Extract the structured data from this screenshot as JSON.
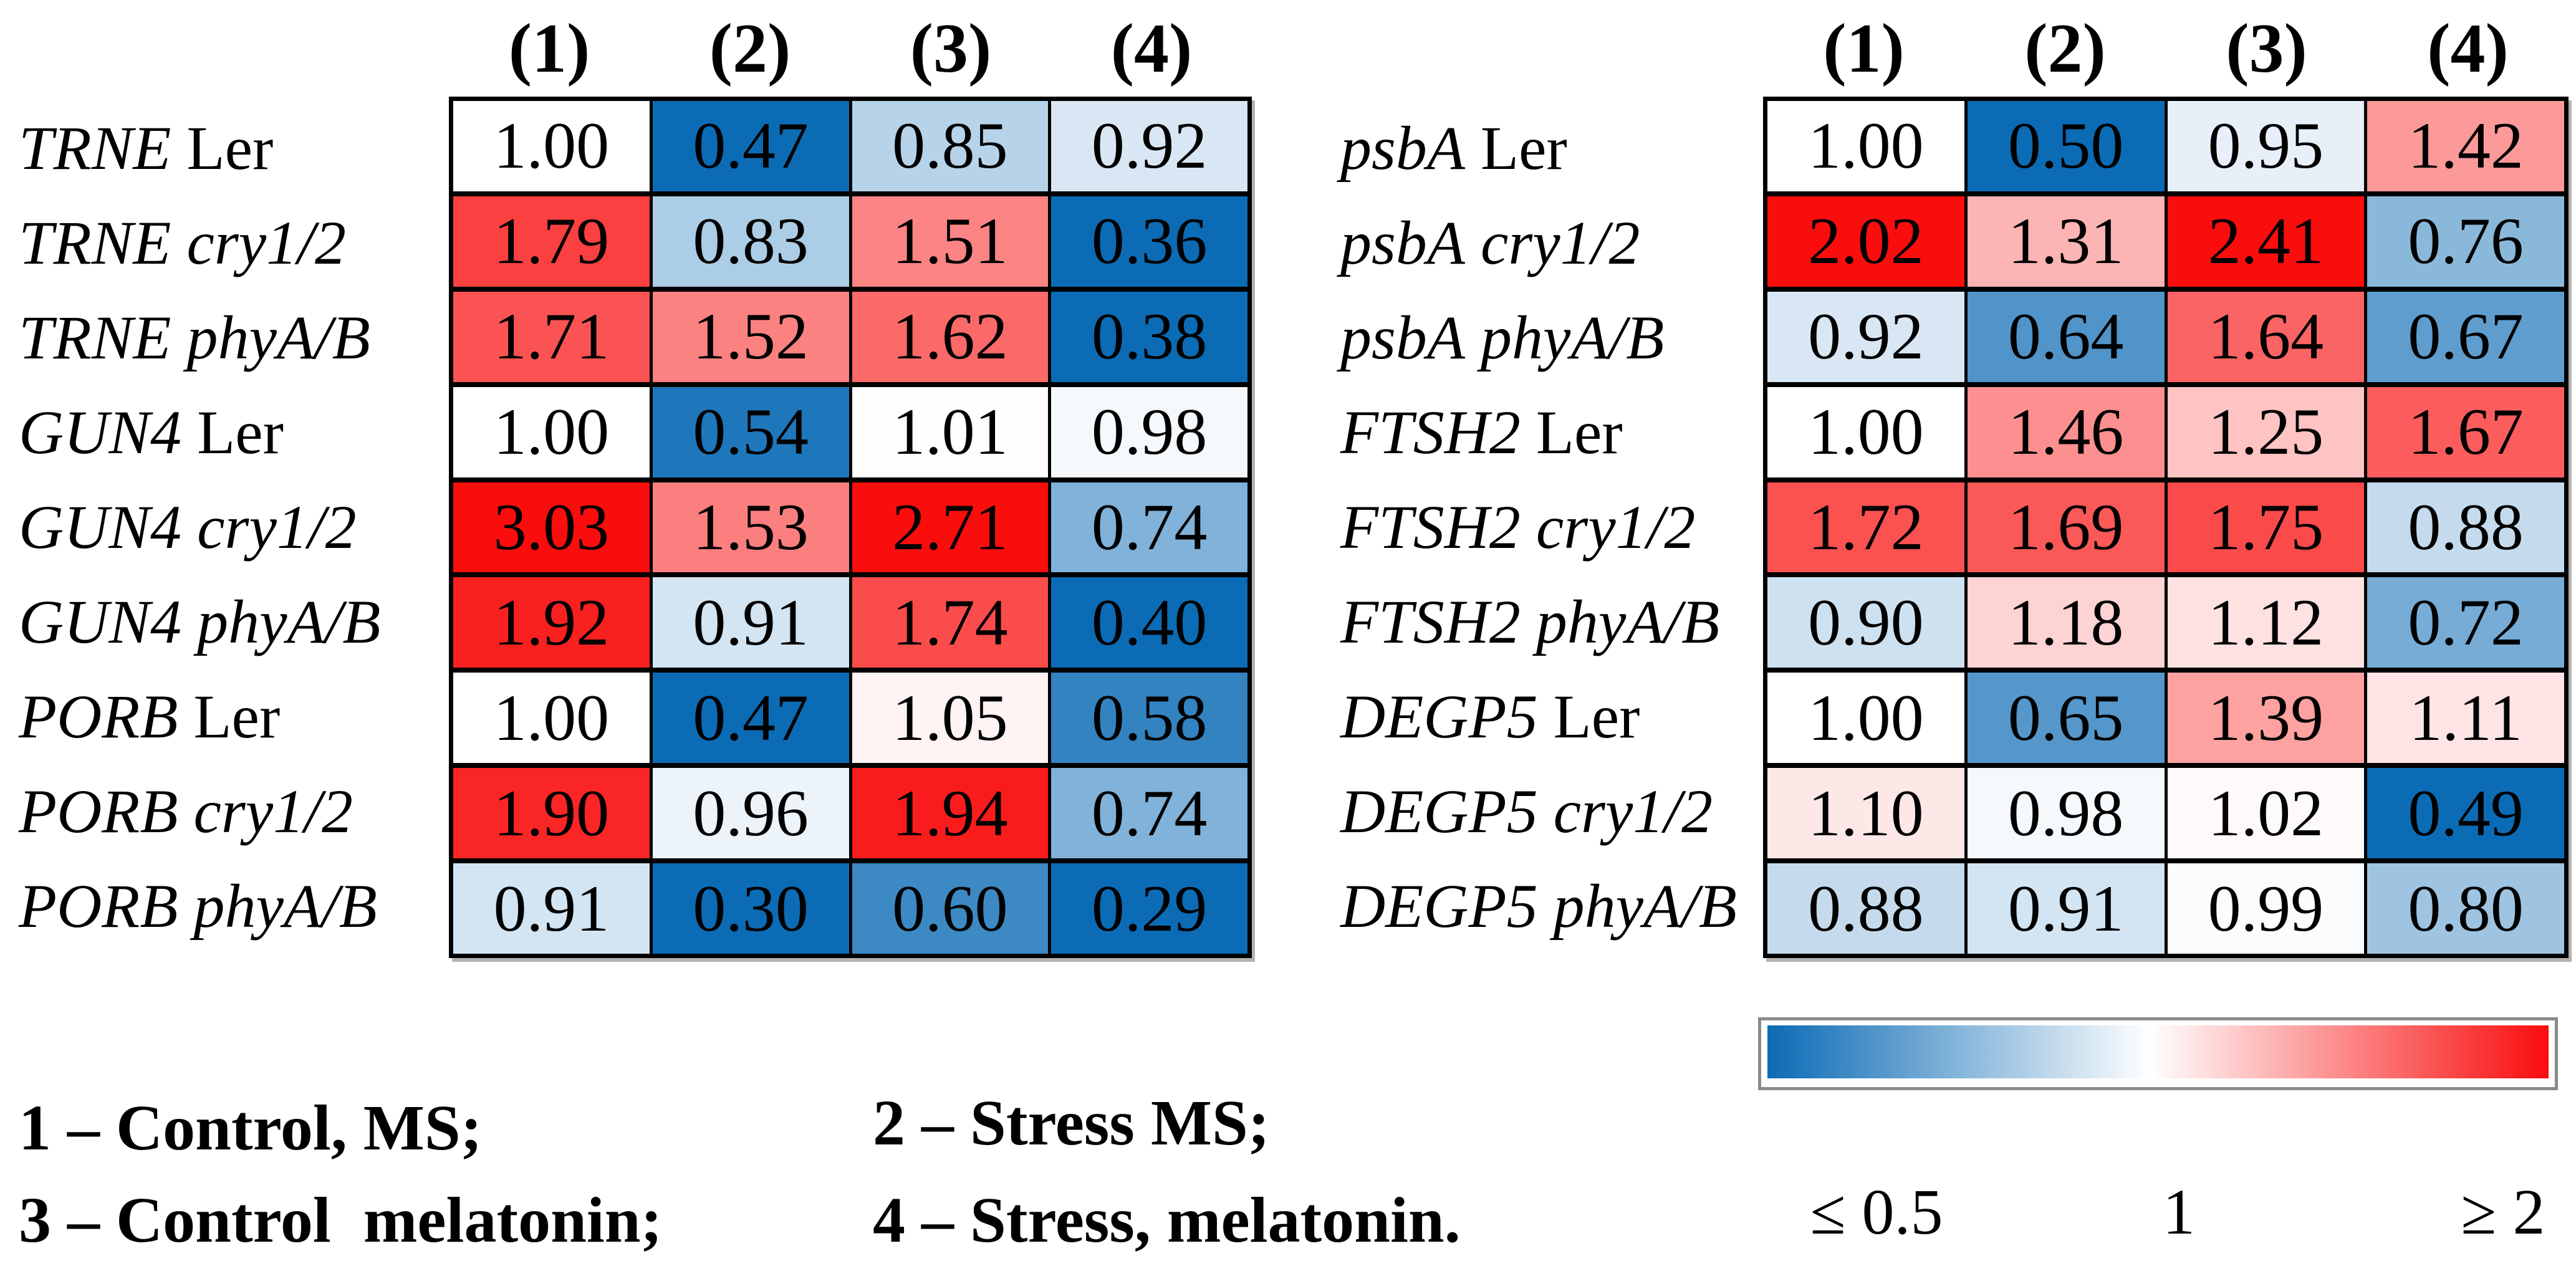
{
  "chart_data": [
    {
      "type": "heatmap",
      "panel": "left",
      "columns": [
        "(1)",
        "(2)",
        "(3)",
        "(4)"
      ],
      "rows": [
        {
          "gene": "TRNE",
          "variant": "Ler",
          "variant_italic": false,
          "values": [
            1.0,
            0.47,
            0.85,
            0.92
          ]
        },
        {
          "gene": "TRNE",
          "variant": "cry1/2",
          "variant_italic": true,
          "values": [
            1.79,
            0.83,
            1.51,
            0.36
          ]
        },
        {
          "gene": "TRNE",
          "variant": "phyA/B",
          "variant_italic": true,
          "values": [
            1.71,
            1.52,
            1.62,
            0.38
          ]
        },
        {
          "gene": "GUN4",
          "variant": "Ler",
          "variant_italic": false,
          "values": [
            1.0,
            0.54,
            1.01,
            0.98
          ]
        },
        {
          "gene": "GUN4",
          "variant": "cry1/2",
          "variant_italic": true,
          "values": [
            3.03,
            1.53,
            2.71,
            0.74
          ]
        },
        {
          "gene": "GUN4",
          "variant": "phyA/B",
          "variant_italic": true,
          "values": [
            1.92,
            0.91,
            1.74,
            0.4
          ]
        },
        {
          "gene": "PORB",
          "variant": "Ler",
          "variant_italic": false,
          "values": [
            1.0,
            0.47,
            1.05,
            0.58
          ]
        },
        {
          "gene": "PORB",
          "variant": "cry1/2",
          "variant_italic": true,
          "values": [
            1.9,
            0.96,
            1.94,
            0.74
          ]
        },
        {
          "gene": "PORB",
          "variant": "phyA/B",
          "variant_italic": true,
          "values": [
            0.91,
            0.3,
            0.6,
            0.29
          ]
        }
      ]
    },
    {
      "type": "heatmap",
      "panel": "right",
      "columns": [
        "(1)",
        "(2)",
        "(3)",
        "(4)"
      ],
      "rows": [
        {
          "gene": "psbA",
          "variant": "Ler",
          "variant_italic": false,
          "values": [
            1.0,
            0.5,
            0.95,
            1.42
          ]
        },
        {
          "gene": "psbA",
          "variant": "cry1/2",
          "variant_italic": true,
          "values": [
            2.02,
            1.31,
            2.41,
            0.76
          ]
        },
        {
          "gene": "psbA",
          "variant": "phyA/B",
          "variant_italic": true,
          "values": [
            0.92,
            0.64,
            1.64,
            0.67
          ]
        },
        {
          "gene": "FTSH2",
          "variant": "Ler",
          "variant_italic": false,
          "values": [
            1.0,
            1.46,
            1.25,
            1.67
          ]
        },
        {
          "gene": "FTSH2",
          "variant": "cry1/2",
          "variant_italic": true,
          "values": [
            1.72,
            1.69,
            1.75,
            0.88
          ]
        },
        {
          "gene": "FTSH2",
          "variant": "phyA/B",
          "variant_italic": true,
          "values": [
            0.9,
            1.18,
            1.12,
            0.72
          ]
        },
        {
          "gene": "DEGP5",
          "variant": "Ler",
          "variant_italic": false,
          "values": [
            1.0,
            0.65,
            1.39,
            1.11
          ]
        },
        {
          "gene": "DEGP5",
          "variant": "cry1/2",
          "variant_italic": true,
          "values": [
            1.1,
            0.98,
            1.02,
            0.49
          ]
        },
        {
          "gene": "DEGP5",
          "variant": "phyA/B",
          "variant_italic": true,
          "values": [
            0.88,
            0.91,
            0.99,
            0.8
          ]
        }
      ]
    }
  ],
  "legend": {
    "items": [
      {
        "label": "1 – Control, MS;"
      },
      {
        "label": "2 – Stress MS;"
      },
      {
        "label": "3 – Control  melatonin;"
      },
      {
        "label": "4 – Stress, melatonin."
      }
    ]
  },
  "colorbar": {
    "labels": [
      "≤ 0.5",
      "1",
      "≥ 2"
    ],
    "min_clip": 0.5,
    "mid": 1,
    "max_clip": 2,
    "min_color": "#0c6bb5",
    "mid_color": "#ffffff",
    "max_color": "#f90d0d",
    "frame_color": "#8a8a8a",
    "white_stop_percent": 49
  }
}
